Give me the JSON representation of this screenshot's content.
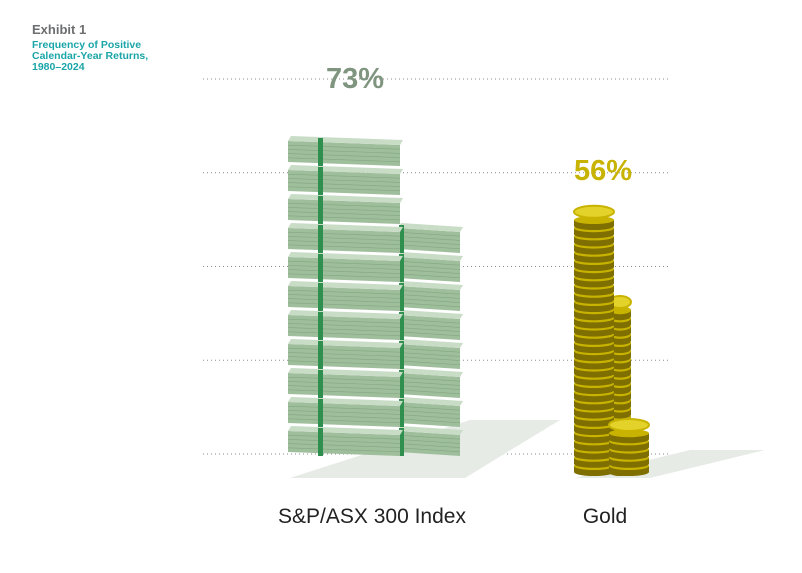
{
  "exhibit_label": "Exhibit 1",
  "title_lines": [
    "Frequency of Positive",
    "Calendar-Year Returns,",
    "1980–2024"
  ],
  "colors": {
    "bill_light": "#c8dcc6",
    "bill_mid": "#9fbe9b",
    "bill_dark": "#6f9a6d",
    "bill_band": "#2e8f4e",
    "coin_light": "#e3d22a",
    "coin_mid": "#c8b300",
    "coin_dark": "#7e6f00",
    "shadow": "#e6ebe6",
    "gridline": "#8a8a8a",
    "pct_equity": "#7f957f",
    "pct_gold": "#c8b300",
    "subtitle": "#1aa5a8"
  },
  "chart_data": {
    "type": "bar",
    "title": "Frequency of Positive Calendar-Year Returns, 1980–2024",
    "categories": [
      "S&P/ASX 300 Index",
      "Gold"
    ],
    "values": [
      73,
      56
    ],
    "value_labels": [
      "73%",
      "56%"
    ],
    "unit": "%",
    "ylim": [
      0,
      80
    ],
    "grid": true,
    "legend": false,
    "style": "pictogram: stacks of banknotes and gold coins"
  }
}
